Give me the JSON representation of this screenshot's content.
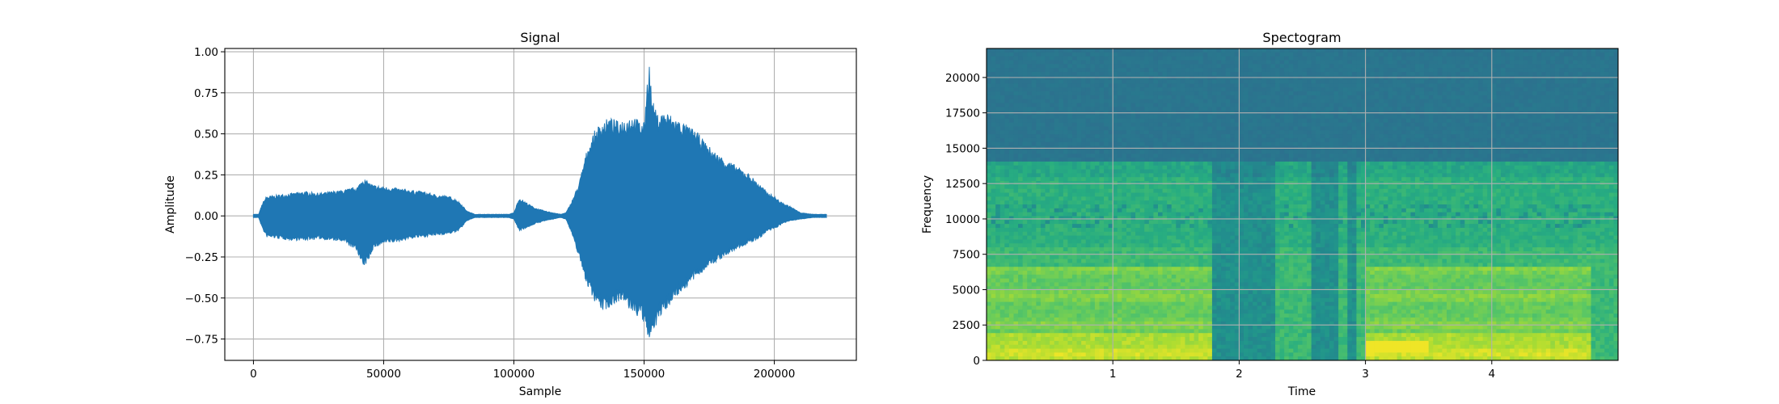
{
  "chart_data": [
    {
      "type": "line",
      "title": "Signal",
      "xlabel": "Sample",
      "ylabel": "Amplitude",
      "xlim": [
        -11000,
        231500
      ],
      "ylim": [
        -0.88,
        1.02
      ],
      "grid": true,
      "x_ticks": [
        0,
        50000,
        100000,
        150000,
        200000
      ],
      "x_tick_labels": [
        "0",
        "50000",
        "100000",
        "150000",
        "200000"
      ],
      "y_ticks": [
        -0.75,
        -0.5,
        -0.25,
        0.0,
        0.25,
        0.5,
        0.75,
        1.0
      ],
      "y_tick_labels": [
        "−0.75",
        "−0.50",
        "−0.25",
        "0.00",
        "0.25",
        "0.50",
        "0.75",
        "1.00"
      ],
      "color": "#1f77b4",
      "envelope": {
        "description_free": true,
        "x": [
          0,
          2000,
          3500,
          5000,
          10000,
          15000,
          20000,
          25000,
          30000,
          35000,
          40000,
          42000,
          44000,
          46000,
          50000,
          55000,
          60000,
          65000,
          70000,
          75000,
          78000,
          80000,
          82000,
          85000,
          90000,
          95000,
          98000,
          100000,
          102000,
          104000,
          108000,
          112000,
          115000,
          118000,
          120000,
          122000,
          125000,
          128000,
          131000,
          134000,
          137000,
          140000,
          143000,
          146000,
          148000,
          150000,
          151000,
          152000,
          153000,
          155000,
          158000,
          162000,
          166000,
          170000,
          174000,
          178000,
          182000,
          186000,
          190000,
          194000,
          197000,
          200000,
          203000,
          206000,
          210000,
          215000,
          220000
        ],
        "upper": [
          0.01,
          0.01,
          0.08,
          0.12,
          0.13,
          0.14,
          0.15,
          0.14,
          0.15,
          0.16,
          0.18,
          0.23,
          0.21,
          0.19,
          0.18,
          0.17,
          0.16,
          0.15,
          0.13,
          0.12,
          0.1,
          0.07,
          0.03,
          0.01,
          0.01,
          0.01,
          0.01,
          0.02,
          0.11,
          0.09,
          0.05,
          0.03,
          0.02,
          0.01,
          0.02,
          0.08,
          0.2,
          0.4,
          0.52,
          0.58,
          0.6,
          0.58,
          0.6,
          0.62,
          0.58,
          0.57,
          0.8,
          0.94,
          0.72,
          0.62,
          0.64,
          0.6,
          0.56,
          0.52,
          0.44,
          0.38,
          0.34,
          0.3,
          0.26,
          0.2,
          0.15,
          0.12,
          0.08,
          0.06,
          0.02,
          0.01,
          0.01
        ],
        "lower": [
          -0.01,
          -0.01,
          -0.08,
          -0.13,
          -0.14,
          -0.15,
          -0.15,
          -0.14,
          -0.15,
          -0.16,
          -0.22,
          -0.32,
          -0.28,
          -0.2,
          -0.17,
          -0.16,
          -0.14,
          -0.13,
          -0.12,
          -0.11,
          -0.1,
          -0.07,
          -0.03,
          -0.01,
          -0.01,
          -0.01,
          -0.01,
          -0.02,
          -0.09,
          -0.08,
          -0.05,
          -0.03,
          -0.02,
          -0.01,
          -0.02,
          -0.1,
          -0.25,
          -0.42,
          -0.52,
          -0.58,
          -0.56,
          -0.52,
          -0.55,
          -0.6,
          -0.62,
          -0.66,
          -0.74,
          -0.78,
          -0.7,
          -0.66,
          -0.58,
          -0.5,
          -0.44,
          -0.38,
          -0.32,
          -0.28,
          -0.24,
          -0.2,
          -0.17,
          -0.14,
          -0.1,
          -0.08,
          -0.05,
          -0.03,
          -0.02,
          -0.01,
          -0.01
        ]
      }
    },
    {
      "type": "heatmap",
      "title": "Spectogram",
      "xlabel": "Time",
      "ylabel": "Frequency",
      "xlim": [
        0.0,
        5.0
      ],
      "ylim": [
        0,
        22050
      ],
      "grid": true,
      "x_ticks": [
        1,
        2,
        3,
        4
      ],
      "x_tick_labels": [
        "1",
        "2",
        "3",
        "4"
      ],
      "y_ticks": [
        0,
        2500,
        5000,
        7500,
        10000,
        12500,
        15000,
        17500,
        20000
      ],
      "y_tick_labels": [
        "0",
        "2500",
        "5000",
        "7500",
        "10000",
        "12500",
        "15000",
        "17500",
        "20000"
      ],
      "colormap": "viridis",
      "silent_gaps": [
        [
          1.78,
          2.3
        ],
        [
          2.58,
          2.78
        ],
        [
          2.85,
          2.92
        ]
      ],
      "voiced_segments": [
        [
          0.0,
          1.78
        ],
        [
          3.0,
          4.78
        ]
      ],
      "strong_band_segments": [
        [
          3.0,
          3.5
        ]
      ]
    }
  ]
}
